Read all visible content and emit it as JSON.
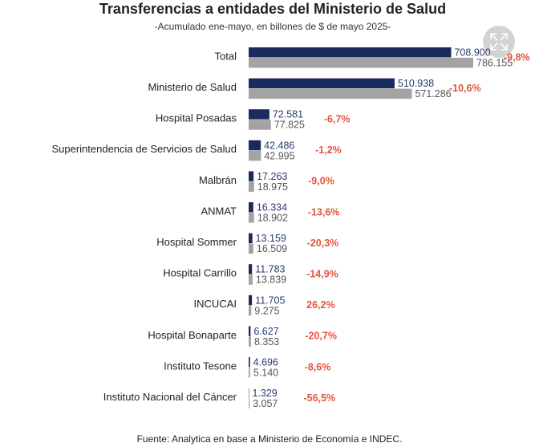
{
  "chart_data": {
    "type": "bar",
    "orientation": "horizontal",
    "title": "Transferencias a entidades del Ministerio de Salud",
    "subtitle": "-Acumulado ene-mayo, en billones de $ de mayo 2025-",
    "categories": [
      "Total",
      "Ministerio de Salud",
      "Hospital Posadas",
      "Superintendencia de Servicios de Salud",
      "Malbrán",
      "ANMAT",
      "Hospital Sommer",
      "Hospital Carrillo",
      "INCUCAI",
      "Hospital Bonaparte",
      "Instituto Tesone",
      "Instituto Nacional del Cáncer"
    ],
    "series": [
      {
        "color": "#1b2a5c",
        "values": [
          708900,
          510938,
          72581,
          42486,
          17263,
          16334,
          13159,
          11783,
          11705,
          6627,
          4696,
          1329
        ],
        "value_labels": [
          "708.900",
          "510.938",
          "72.581",
          "42.486",
          "17.263",
          "16.334",
          "13.159",
          "11.783",
          "11.705",
          "6.627",
          "4.696",
          "1.329"
        ]
      },
      {
        "color": "#a3a3a3",
        "values": [
          786155,
          571286,
          77825,
          42995,
          18975,
          18902,
          16509,
          13839,
          9275,
          8353,
          5140,
          3057
        ],
        "value_labels": [
          "786.155",
          "571.286",
          "77.825",
          "42.995",
          "18.975",
          "18.902",
          "16.509",
          "13.839",
          "9.275",
          "8.353",
          "5.140",
          "3.057"
        ]
      }
    ],
    "change_labels": [
      "-9,8%",
      "-10,6%",
      "-6,7%",
      "-1,2%",
      "-9,0%",
      "-13,6%",
      "-20,3%",
      "-14,9%",
      "26,2%",
      "-20,7%",
      "-8,6%",
      "-56,5%"
    ],
    "change_color": "#e5533d",
    "source": "Fuente: Analytica en base a Ministerio de Economía e INDEC."
  }
}
